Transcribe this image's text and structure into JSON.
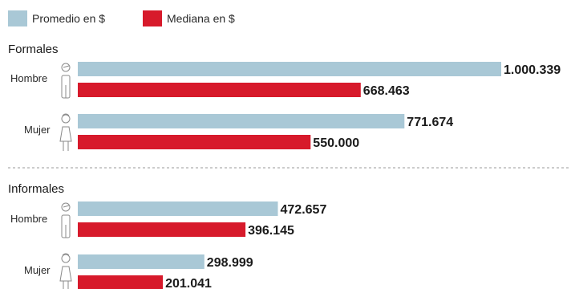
{
  "chart_data": {
    "type": "bar",
    "orientation": "horizontal",
    "xlim": [
      0,
      1000339
    ],
    "legend_placement": "top-left",
    "series": [
      {
        "name": "Promedio en $",
        "color": "#a9c8d6"
      },
      {
        "name": "Mediana en $",
        "color": "#d71a2b"
      }
    ],
    "groups": [
      {
        "title": "Formales",
        "categories": [
          {
            "label": "Hombre",
            "icon": "male-figure-icon",
            "values": [
              1000339,
              668463
            ],
            "labels": [
              "1.000.339",
              "668.463"
            ]
          },
          {
            "label": "Mujer",
            "icon": "female-figure-icon",
            "values": [
              771674,
              550000
            ],
            "labels": [
              "771.674",
              "550.000"
            ]
          }
        ]
      },
      {
        "title": "Informales",
        "categories": [
          {
            "label": "Hombre",
            "icon": "male-figure-icon",
            "values": [
              472657,
              396145
            ],
            "labels": [
              "472.657",
              "396.145"
            ]
          },
          {
            "label": "Mujer",
            "icon": "female-figure-icon",
            "values": [
              298999,
              201041
            ],
            "labels": [
              "298.999",
              "201.041"
            ]
          }
        ]
      }
    ]
  }
}
